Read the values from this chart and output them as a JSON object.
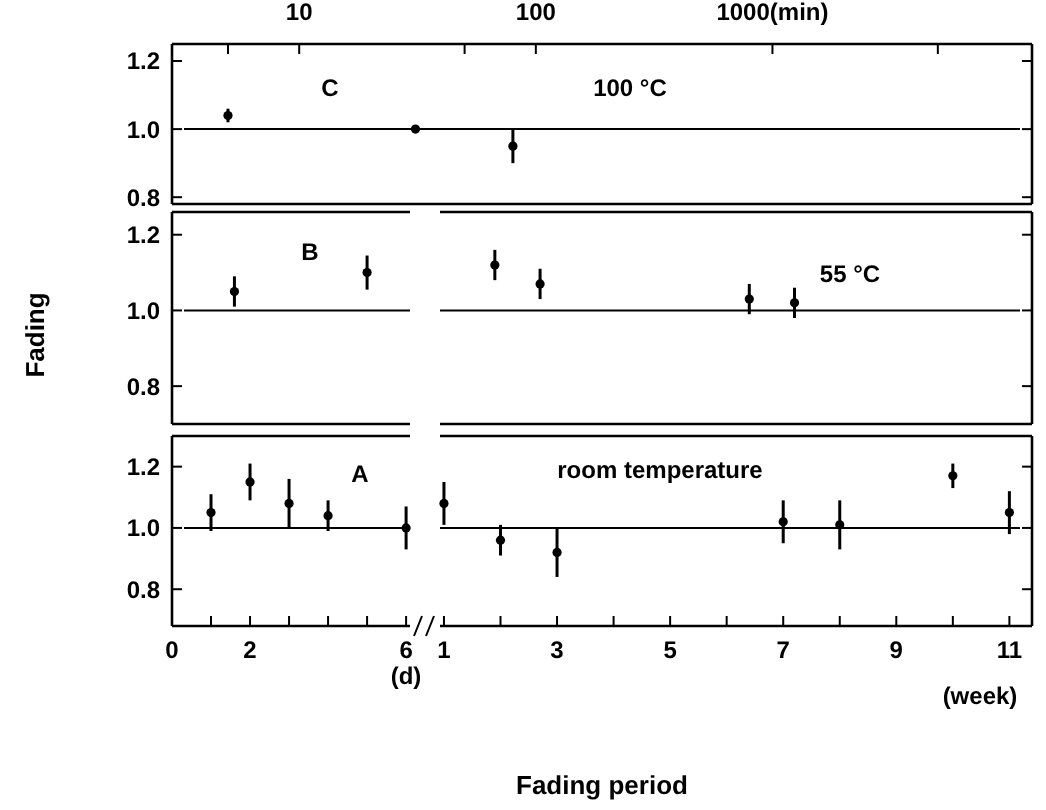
{
  "chart_data": [
    {
      "type": "scatter",
      "xlim": [
        2.9,
        12500
      ],
      "xticks": [
        {
          "value": 5,
          "label": null
        },
        10,
        {
          "value": 50,
          "label": null
        },
        100,
        {
          "value": 1000,
          "label": "1000(min)"
        },
        {
          "value": 5000,
          "label": null
        }
      ],
      "log": "x",
      "ylim": [
        0.78,
        1.25
      ],
      "yticks": [
        {
          "value": 0.8,
          "label": "0.8"
        },
        {
          "value": 1,
          "label": "1.0"
        },
        {
          "value": 1.2,
          "label": "1.2"
        }
      ],
      "marker": "circle",
      "ref_lines": [
        {
          "axis": "y",
          "value": 1
        }
      ],
      "annotations": [
        "C",
        "100 °C"
      ],
      "series": [
        {
          "color": "#000000",
          "x": [
            5,
            31,
            80
          ],
          "values": [
            1.04,
            1.0,
            0.95
          ],
          "errors": [
            0.02,
            0.01,
            0.05
          ]
        }
      ]
    },
    {
      "type": "scatter",
      "xlim": [
        0,
        6.1
      ],
      "tick_labels": "y",
      "ylim": [
        0.7,
        1.26
      ],
      "yticks": [
        {
          "value": 0.8,
          "label": "0.8"
        },
        {
          "value": 1,
          "label": "1.0"
        },
        {
          "value": 1.2,
          "label": "1.2"
        }
      ],
      "ylabel": "Fading",
      "marker": "circle",
      "ref_lines": [
        {
          "axis": "y",
          "value": 1
        }
      ],
      "annotations": [
        "B"
      ],
      "series": [
        {
          "color": "#000000",
          "x": [
            1.6,
            5
          ],
          "values": [
            1.05,
            1.1
          ],
          "errors": [
            0.04,
            0.045
          ]
        }
      ]
    },
    {
      "type": "scatter",
      "xlim": [
        0.93,
        11.4
      ],
      "tick_labels": false,
      "ylim": [
        0.7,
        1.26
      ],
      "yticks": [
        0.8,
        1,
        1.2
      ],
      "marker": "circle",
      "ref_lines": [
        {
          "axis": "y",
          "value": 1
        }
      ],
      "annotations": [
        "55 °C"
      ],
      "series": [
        {
          "color": "#000000",
          "x": [
            1.9,
            2.7,
            6.4,
            7.2
          ],
          "values": [
            1.12,
            1.07,
            1.03,
            1.02
          ],
          "errors": [
            0.04,
            0.04,
            0.04,
            0.04
          ]
        }
      ]
    },
    {
      "type": "scatter",
      "xlim": [
        0,
        6.1
      ],
      "xticks": [
        0,
        {
          "value": 1,
          "label": null
        },
        2,
        {
          "value": 3,
          "label": null
        },
        {
          "value": 4,
          "label": null
        },
        {
          "value": 5,
          "label": null
        },
        6
      ],
      "ylim": [
        0.68,
        1.3
      ],
      "yticks": [
        {
          "value": 0.8,
          "label": "0.8"
        },
        {
          "value": 1,
          "label": "1.0"
        },
        {
          "value": 1.2,
          "label": "1.2"
        }
      ],
      "marker": "circle",
      "ref_lines": [
        {
          "axis": "y",
          "value": 1
        }
      ],
      "annotations": [
        "A",
        "(d)"
      ],
      "series": [
        {
          "color": "#000000",
          "x": [
            1,
            2,
            3,
            4,
            6
          ],
          "values": [
            1.05,
            1.15,
            1.08,
            1.04,
            1.0
          ],
          "errors": [
            0.06,
            0.06,
            0.08,
            0.05,
            0.07
          ]
        }
      ]
    },
    {
      "type": "scatter",
      "xlim": [
        0.93,
        11.4
      ],
      "xticks": [
        1,
        {
          "value": 2,
          "label": null
        },
        3,
        {
          "value": 4,
          "label": null
        },
        5,
        {
          "value": 6,
          "label": null
        },
        7,
        {
          "value": 8,
          "label": null
        },
        9,
        {
          "value": 10,
          "label": null
        },
        11
      ],
      "tick_labels": "x",
      "ylim": [
        0.68,
        1.3
      ],
      "yticks": [
        0.8,
        1,
        1.2
      ],
      "xlabel": "Fading period",
      "marker": "circle",
      "ref_lines": [
        {
          "axis": "y",
          "value": 1
        }
      ],
      "annotations": [
        "room temperature",
        "(week)"
      ],
      "series": [
        {
          "color": "#000000",
          "x": [
            1,
            2,
            3,
            7,
            8,
            10,
            11
          ],
          "values": [
            1.08,
            0.96,
            0.92,
            1.02,
            1.01,
            1.17,
            1.05
          ],
          "errors": [
            0.07,
            0.05,
            0.08,
            0.07,
            0.08,
            0.04,
            0.07
          ]
        }
      ]
    }
  ]
}
